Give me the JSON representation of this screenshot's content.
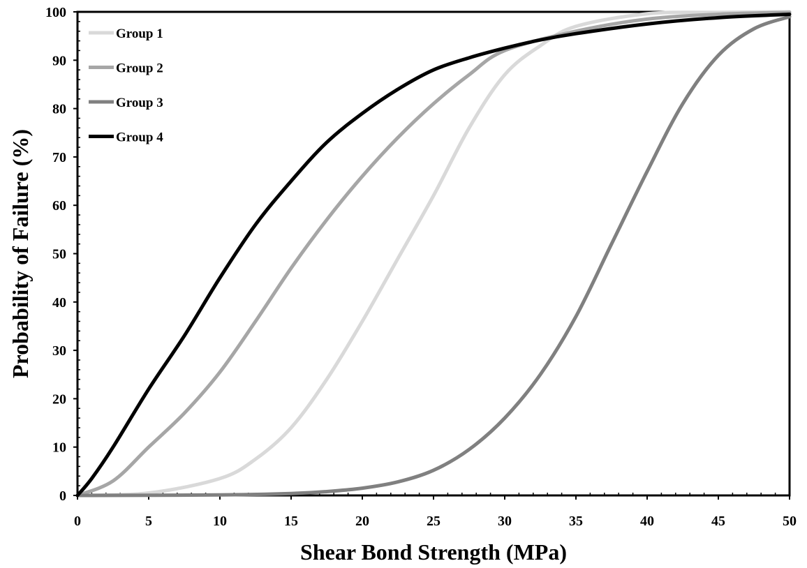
{
  "chart_data": {
    "type": "line",
    "title": "",
    "xlabel": "Shear Bond Strength (MPa)",
    "ylabel": "Probability of Failure (%)",
    "xlim": [
      0,
      50
    ],
    "ylim": [
      0,
      100
    ],
    "x_ticks": [
      "0",
      "5",
      "10",
      "15",
      "20",
      "25",
      "30",
      "35",
      "40",
      "45",
      "50"
    ],
    "y_ticks": [
      "0",
      "10",
      "20",
      "30",
      "40",
      "50",
      "60",
      "70",
      "80",
      "90",
      "100"
    ],
    "grid": false,
    "legend_position": "top-left",
    "series": [
      {
        "name": "Group 1",
        "color": "#d9d9d9",
        "x": [
          0,
          5,
          10,
          12.5,
          15,
          17.5,
          20,
          22.5,
          25,
          27.5,
          30,
          32.5,
          35,
          40,
          45,
          50
        ],
        "y": [
          0,
          0.5,
          3.5,
          7.5,
          14,
          24,
          36,
          49,
          62,
          76,
          87,
          93,
          97,
          99.6,
          99.9,
          100
        ]
      },
      {
        "name": "Group 2",
        "color": "#a6a6a6",
        "x": [
          0,
          2.5,
          5,
          7.5,
          10,
          12.5,
          15,
          17.5,
          20,
          22.5,
          25,
          27.5,
          30,
          35,
          40,
          45,
          50
        ],
        "y": [
          0,
          3,
          10,
          17,
          25.5,
          36,
          47,
          57,
          66,
          74,
          81,
          87,
          92,
          96,
          98.5,
          99.5,
          99.9
        ]
      },
      {
        "name": "Group 3",
        "color": "#808080",
        "x": [
          0,
          10,
          15,
          17.5,
          20,
          22.5,
          25,
          27.5,
          30,
          32.5,
          35,
          37.5,
          40,
          42.5,
          45,
          47.5,
          50
        ],
        "y": [
          0,
          0.1,
          0.4,
          0.8,
          1.5,
          2.8,
          5.2,
          9.5,
          16,
          25,
          37,
          52,
          67,
          81,
          91,
          96.5,
          99
        ]
      },
      {
        "name": "Group 4",
        "color": "#000000",
        "x": [
          0,
          1,
          2.5,
          5,
          7.5,
          10,
          12.5,
          15,
          17.5,
          20,
          22.5,
          25,
          27.5,
          30,
          32.5,
          35,
          40,
          45,
          50
        ],
        "y": [
          0,
          3.5,
          10,
          22,
          33,
          45,
          56,
          65,
          73,
          79,
          84,
          88,
          90.5,
          92.5,
          94.2,
          95.5,
          97.5,
          98.8,
          99.5
        ]
      }
    ]
  }
}
